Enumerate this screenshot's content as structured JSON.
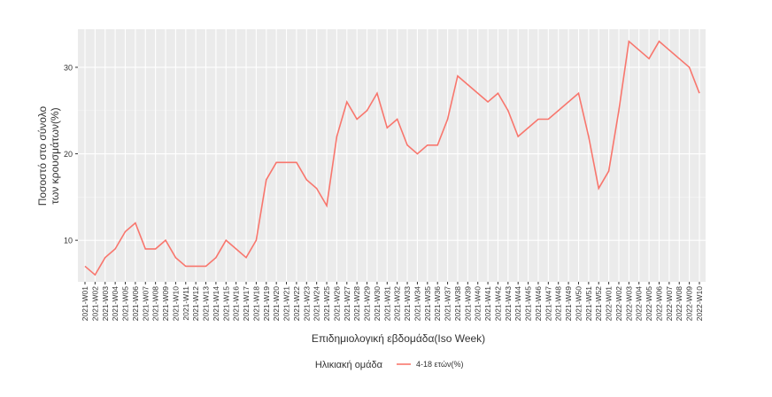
{
  "chart_data": {
    "type": "line",
    "x_label": "Επιδημιολογική εβδομάδα(Iso Week)",
    "y_label": [
      "Ποσοστό στο σύνολο",
      "των κρουσμάτων(%)"
    ],
    "legend_title": "Ηλικιακή ομάδα",
    "legend_position": "bottom",
    "grid": true,
    "categories": [
      "2021-W01",
      "2021-W02",
      "2021-W03",
      "2021-W04",
      "2021-W05",
      "2021-W06",
      "2021-W07",
      "2021-W08",
      "2021-W09",
      "2021-W10",
      "2021-W11",
      "2021-W12",
      "2021-W13",
      "2021-W14",
      "2021-W15",
      "2021-W16",
      "2021-W17",
      "2021-W18",
      "2021-W19",
      "2021-W20",
      "2021-W21",
      "2021-W22",
      "2021-W23",
      "2021-W24",
      "2021-W25",
      "2021-W26",
      "2021-W27",
      "2021-W28",
      "2021-W29",
      "2021-W30",
      "2021-W31",
      "2021-W32",
      "2021-W33",
      "2021-W34",
      "2021-W35",
      "2021-W36",
      "2021-W37",
      "2021-W38",
      "2021-W39",
      "2021-W40",
      "2021-W41",
      "2021-W42",
      "2021-W43",
      "2021-W44",
      "2021-W45",
      "2021-W46",
      "2021-W47",
      "2021-W48",
      "2021-W49",
      "2021-W50",
      "2021-W51",
      "2021-W52",
      "2022-W01",
      "2022-W02",
      "2022-W03",
      "2022-W04",
      "2022-W05",
      "2022-W06",
      "2022-W07",
      "2022-W08",
      "2022-W09",
      "2022-W10"
    ],
    "series": [
      {
        "name": "4-18 ετών(%)",
        "color": "#f8766d",
        "values": [
          7,
          6,
          8,
          9,
          11,
          12,
          9,
          9,
          10,
          8,
          7,
          7,
          7,
          8,
          10,
          9,
          8,
          10,
          17,
          19,
          19,
          19,
          17,
          16,
          14,
          22,
          26,
          24,
          25,
          27,
          23,
          24,
          21,
          20,
          21,
          21,
          24,
          29,
          28,
          27,
          26,
          27,
          25,
          22,
          23,
          24,
          24,
          25,
          26,
          27,
          22,
          16,
          18,
          25,
          33,
          32,
          31,
          33,
          32,
          31,
          30,
          27
        ]
      }
    ],
    "ylim": [
      5.2,
      34.4
    ],
    "yticks": [
      10,
      20,
      30
    ]
  }
}
